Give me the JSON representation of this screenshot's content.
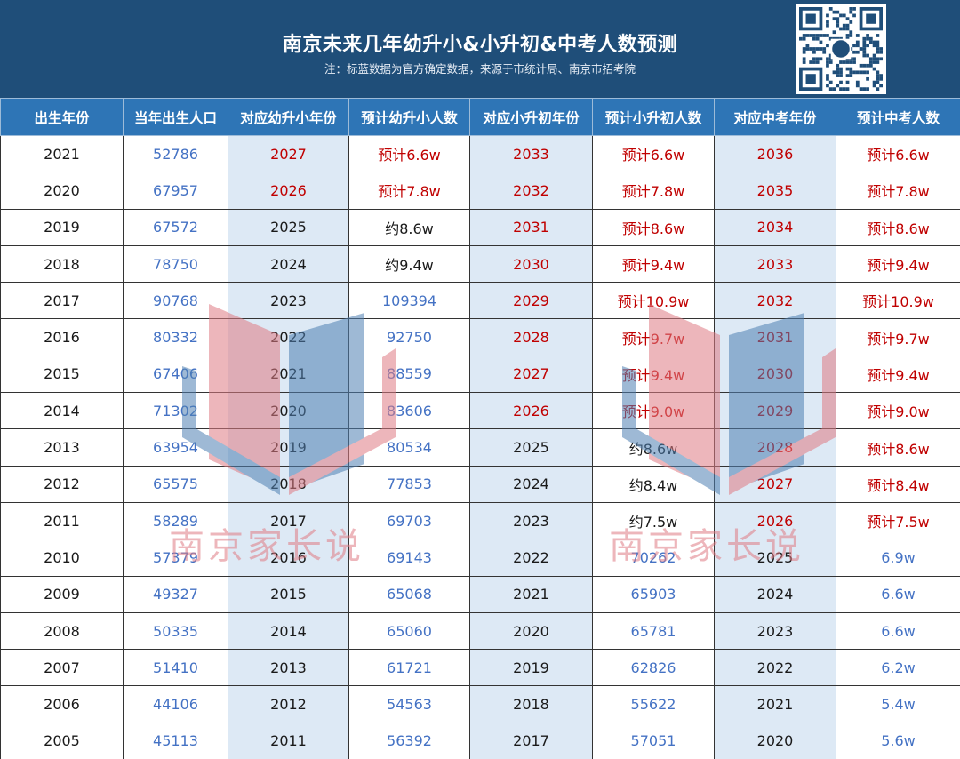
{
  "header": {
    "title": "南京未来几年幼升小&小升初&中考人数预测",
    "subtitle": "注：标蓝数据为官方确定数据，来源于市统计局、南京市招考院"
  },
  "colors": {
    "header_bg": "#1f4e79",
    "th_bg": "#2e75b6",
    "band": "#dde9f5",
    "blue": "#4472c4",
    "red": "#c00000"
  },
  "table": {
    "columns": [
      "出生年份",
      "当年出生人口",
      "对应幼升小年份",
      "预计幼升小人数",
      "对应小升初年份",
      "预计小升初人数",
      "对应中考年份",
      "预计中考人数"
    ],
    "rows": [
      [
        {
          "t": "2021",
          "c": "black"
        },
        {
          "t": "52786",
          "c": "blue"
        },
        {
          "t": "2027",
          "c": "red"
        },
        {
          "t": "预计6.6w",
          "c": "red"
        },
        {
          "t": "2033",
          "c": "red"
        },
        {
          "t": "预计6.6w",
          "c": "red"
        },
        {
          "t": "2036",
          "c": "red"
        },
        {
          "t": "预计6.6w",
          "c": "red"
        }
      ],
      [
        {
          "t": "2020",
          "c": "black"
        },
        {
          "t": "67957",
          "c": "blue"
        },
        {
          "t": "2026",
          "c": "red"
        },
        {
          "t": "预计7.8w",
          "c": "red"
        },
        {
          "t": "2032",
          "c": "red"
        },
        {
          "t": "预计7.8w",
          "c": "red"
        },
        {
          "t": "2035",
          "c": "red"
        },
        {
          "t": "预计7.8w",
          "c": "red"
        }
      ],
      [
        {
          "t": "2019",
          "c": "black"
        },
        {
          "t": "67572",
          "c": "blue"
        },
        {
          "t": "2025",
          "c": "black"
        },
        {
          "t": "约8.6w",
          "c": "black"
        },
        {
          "t": "2031",
          "c": "red"
        },
        {
          "t": "预计8.6w",
          "c": "red"
        },
        {
          "t": "2034",
          "c": "red"
        },
        {
          "t": "预计8.6w",
          "c": "red"
        }
      ],
      [
        {
          "t": "2018",
          "c": "black"
        },
        {
          "t": "78750",
          "c": "blue"
        },
        {
          "t": "2024",
          "c": "black"
        },
        {
          "t": "约9.4w",
          "c": "black"
        },
        {
          "t": "2030",
          "c": "red"
        },
        {
          "t": "预计9.4w",
          "c": "red"
        },
        {
          "t": "2033",
          "c": "red"
        },
        {
          "t": "预计9.4w",
          "c": "red"
        }
      ],
      [
        {
          "t": "2017",
          "c": "black"
        },
        {
          "t": "90768",
          "c": "blue"
        },
        {
          "t": "2023",
          "c": "black"
        },
        {
          "t": "109394",
          "c": "blue"
        },
        {
          "t": "2029",
          "c": "red"
        },
        {
          "t": "预计10.9w",
          "c": "red"
        },
        {
          "t": "2032",
          "c": "red"
        },
        {
          "t": "预计10.9w",
          "c": "red"
        }
      ],
      [
        {
          "t": "2016",
          "c": "black"
        },
        {
          "t": "80332",
          "c": "blue"
        },
        {
          "t": "2022",
          "c": "black"
        },
        {
          "t": "92750",
          "c": "blue"
        },
        {
          "t": "2028",
          "c": "red"
        },
        {
          "t": "预计9.7w",
          "c": "red"
        },
        {
          "t": "2031",
          "c": "red"
        },
        {
          "t": "预计9.7w",
          "c": "red"
        }
      ],
      [
        {
          "t": "2015",
          "c": "black"
        },
        {
          "t": "67406",
          "c": "blue"
        },
        {
          "t": "2021",
          "c": "black"
        },
        {
          "t": "88559",
          "c": "blue"
        },
        {
          "t": "2027",
          "c": "red"
        },
        {
          "t": "预计9.4w",
          "c": "red"
        },
        {
          "t": "2030",
          "c": "red"
        },
        {
          "t": "预计9.4w",
          "c": "red"
        }
      ],
      [
        {
          "t": "2014",
          "c": "black"
        },
        {
          "t": "71302",
          "c": "blue"
        },
        {
          "t": "2020",
          "c": "black"
        },
        {
          "t": "83606",
          "c": "blue"
        },
        {
          "t": "2026",
          "c": "red"
        },
        {
          "t": "预计9.0w",
          "c": "red"
        },
        {
          "t": "2029",
          "c": "red"
        },
        {
          "t": "预计9.0w",
          "c": "red"
        }
      ],
      [
        {
          "t": "2013",
          "c": "black"
        },
        {
          "t": "63954",
          "c": "blue"
        },
        {
          "t": "2019",
          "c": "black"
        },
        {
          "t": "80534",
          "c": "blue"
        },
        {
          "t": "2025",
          "c": "black"
        },
        {
          "t": "约8.6w",
          "c": "black"
        },
        {
          "t": "2028",
          "c": "red"
        },
        {
          "t": "预计8.6w",
          "c": "red"
        }
      ],
      [
        {
          "t": "2012",
          "c": "black"
        },
        {
          "t": "65575",
          "c": "blue"
        },
        {
          "t": "2018",
          "c": "black"
        },
        {
          "t": "77853",
          "c": "blue"
        },
        {
          "t": "2024",
          "c": "black"
        },
        {
          "t": "约8.4w",
          "c": "black"
        },
        {
          "t": "2027",
          "c": "red"
        },
        {
          "t": "预计8.4w",
          "c": "red"
        }
      ],
      [
        {
          "t": "2011",
          "c": "black"
        },
        {
          "t": "58289",
          "c": "blue"
        },
        {
          "t": "2017",
          "c": "black"
        },
        {
          "t": "69703",
          "c": "blue"
        },
        {
          "t": "2023",
          "c": "black"
        },
        {
          "t": "约7.5w",
          "c": "black"
        },
        {
          "t": "2026",
          "c": "red"
        },
        {
          "t": "预计7.5w",
          "c": "red"
        }
      ],
      [
        {
          "t": "2010",
          "c": "black"
        },
        {
          "t": "57379",
          "c": "blue"
        },
        {
          "t": "2016",
          "c": "black"
        },
        {
          "t": "69143",
          "c": "blue"
        },
        {
          "t": "2022",
          "c": "black"
        },
        {
          "t": "70262",
          "c": "blue"
        },
        {
          "t": "2025",
          "c": "black"
        },
        {
          "t": "6.9w",
          "c": "blue"
        }
      ],
      [
        {
          "t": "2009",
          "c": "black"
        },
        {
          "t": "49327",
          "c": "blue"
        },
        {
          "t": "2015",
          "c": "black"
        },
        {
          "t": "65068",
          "c": "blue"
        },
        {
          "t": "2021",
          "c": "black"
        },
        {
          "t": "65903",
          "c": "blue"
        },
        {
          "t": "2024",
          "c": "black"
        },
        {
          "t": "6.6w",
          "c": "blue"
        }
      ],
      [
        {
          "t": "2008",
          "c": "black"
        },
        {
          "t": "50335",
          "c": "blue"
        },
        {
          "t": "2014",
          "c": "black"
        },
        {
          "t": "65060",
          "c": "blue"
        },
        {
          "t": "2020",
          "c": "black"
        },
        {
          "t": "65781",
          "c": "blue"
        },
        {
          "t": "2023",
          "c": "black"
        },
        {
          "t": "6.6w",
          "c": "blue"
        }
      ],
      [
        {
          "t": "2007",
          "c": "black"
        },
        {
          "t": "51410",
          "c": "blue"
        },
        {
          "t": "2013",
          "c": "black"
        },
        {
          "t": "61721",
          "c": "blue"
        },
        {
          "t": "2019",
          "c": "black"
        },
        {
          "t": "62826",
          "c": "blue"
        },
        {
          "t": "2022",
          "c": "black"
        },
        {
          "t": "6.2w",
          "c": "blue"
        }
      ],
      [
        {
          "t": "2006",
          "c": "black"
        },
        {
          "t": "44106",
          "c": "blue"
        },
        {
          "t": "2012",
          "c": "black"
        },
        {
          "t": "54563",
          "c": "blue"
        },
        {
          "t": "2018",
          "c": "black"
        },
        {
          "t": "55622",
          "c": "blue"
        },
        {
          "t": "2021",
          "c": "black"
        },
        {
          "t": "5.4w",
          "c": "blue"
        }
      ],
      [
        {
          "t": "2005",
          "c": "black"
        },
        {
          "t": "45113",
          "c": "blue"
        },
        {
          "t": "2011",
          "c": "black"
        },
        {
          "t": "56392",
          "c": "blue"
        },
        {
          "t": "2017",
          "c": "black"
        },
        {
          "t": "57051",
          "c": "blue"
        },
        {
          "t": "2020",
          "c": "black"
        },
        {
          "t": "5.6w",
          "c": "blue"
        }
      ]
    ]
  },
  "watermark": {
    "text": "南京家长说",
    "icon": "open-book-logo"
  },
  "qr": {
    "icon": "qr-code-icon",
    "center_icon": "wechat-icon"
  }
}
